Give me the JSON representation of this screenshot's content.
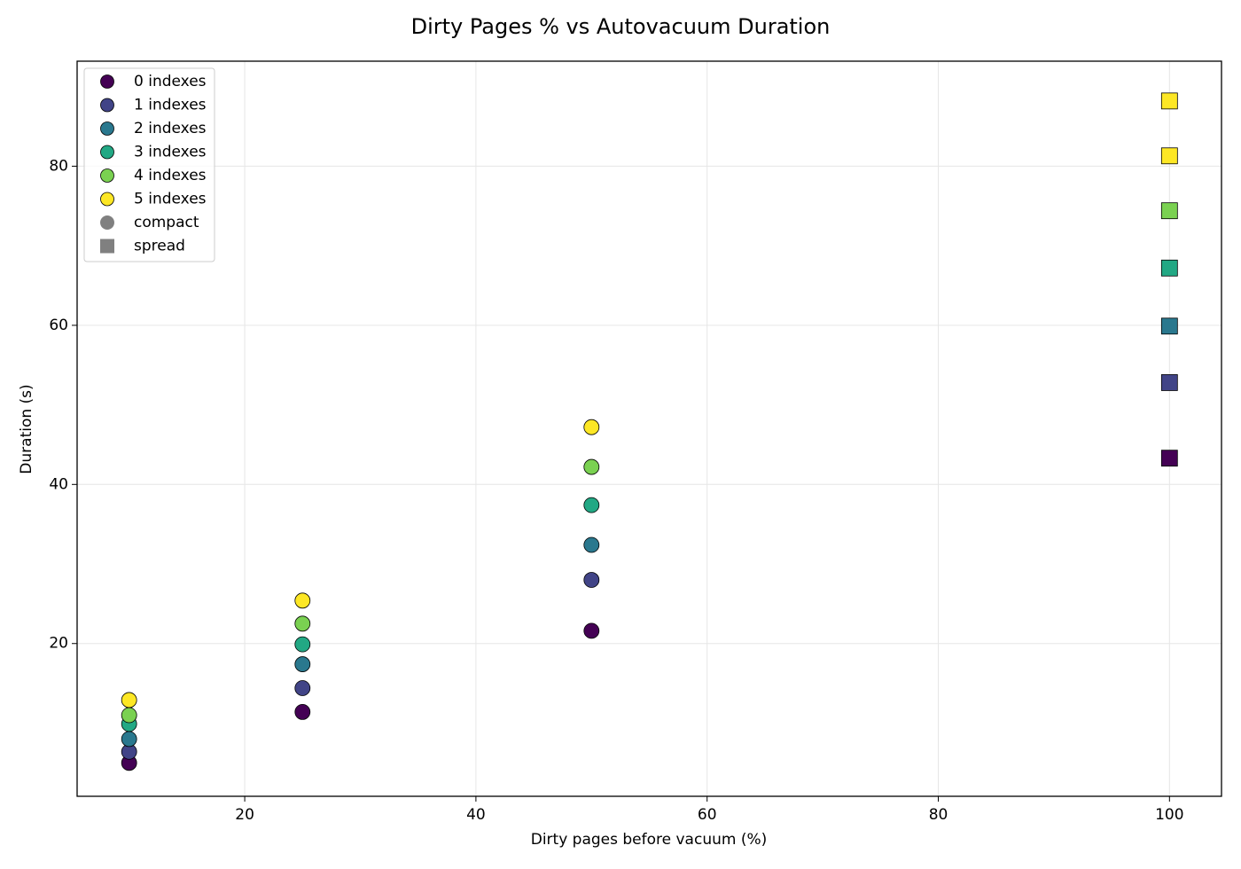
{
  "chart_data": {
    "type": "scatter",
    "title": "Dirty Pages % vs Autovacuum Duration",
    "xlabel": "Dirty pages before vacuum (%)",
    "ylabel": "Duration (s)",
    "xlim": [
      5.5,
      104.5
    ],
    "xticks": [
      20,
      40,
      60,
      80,
      100
    ],
    "ylim": [
      0.8,
      93.2
    ],
    "yticks": [
      20,
      40,
      60,
      80
    ],
    "grid": true,
    "legend": "upper left",
    "series": [
      {
        "name": "0 indexes",
        "color": "#440154",
        "x": [
          10,
          25,
          50,
          100
        ],
        "values": [
          5.0,
          11.4,
          21.6,
          43.3
        ],
        "layout": [
          "compact",
          "compact",
          "compact",
          "spread"
        ]
      },
      {
        "name": "1 indexes",
        "color": "#414487",
        "x": [
          10,
          25,
          50,
          100
        ],
        "values": [
          6.4,
          14.4,
          28.0,
          52.8
        ],
        "layout": [
          "compact",
          "compact",
          "compact",
          "spread"
        ]
      },
      {
        "name": "2 indexes",
        "color": "#2a788e",
        "x": [
          10,
          25,
          50,
          100
        ],
        "values": [
          8.0,
          17.4,
          32.4,
          59.9
        ],
        "layout": [
          "compact",
          "compact",
          "compact",
          "spread"
        ]
      },
      {
        "name": "3 indexes",
        "color": "#22a884",
        "x": [
          10,
          25,
          50,
          100
        ],
        "values": [
          9.9,
          19.9,
          37.4,
          67.2
        ],
        "layout": [
          "compact",
          "compact",
          "compact",
          "spread"
        ]
      },
      {
        "name": "4 indexes",
        "color": "#7ad151",
        "x": [
          10,
          25,
          50,
          100
        ],
        "values": [
          11.0,
          22.5,
          42.2,
          74.4
        ],
        "layout": [
          "compact",
          "compact",
          "compact",
          "spread"
        ]
      },
      {
        "name": "5 indexes",
        "color": "#fde725",
        "x": [
          10,
          25,
          50,
          100,
          100
        ],
        "values": [
          12.9,
          25.4,
          47.2,
          81.3,
          88.2
        ],
        "layout": [
          "compact",
          "compact",
          "compact",
          "spread",
          "spread"
        ]
      }
    ],
    "marker_legend": [
      {
        "name": "compact",
        "marker": "circle"
      },
      {
        "name": "spread",
        "marker": "square"
      }
    ]
  }
}
